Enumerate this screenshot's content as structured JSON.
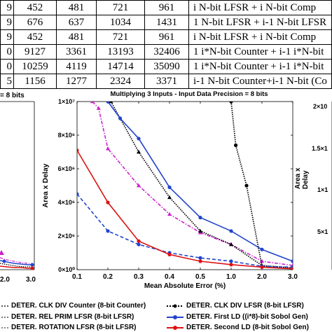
{
  "table": {
    "rows": [
      [
        "9",
        "452",
        "481",
        "721",
        "961",
        "i N-bit LFSR + i N-bit Comp"
      ],
      [
        "9",
        "676",
        "637",
        "1034",
        "1431",
        "1 N-bit LFSR + i-1 N-bit LFSR"
      ],
      [
        "9",
        "452",
        "481",
        "721",
        "961",
        "i N-bit LFSR + i N-bit Comp"
      ],
      [
        "0",
        "9127",
        "3361",
        "13193",
        "32406",
        "1 i*N-bit Counter + i-1 i*N-bit"
      ],
      [
        "0",
        "10259",
        "4119",
        "14714",
        "35090",
        "1 i*N-bit Counter + i-1 i*N-bit"
      ],
      [
        "5",
        "1156",
        "1277",
        "2324",
        "3371",
        "i-1 N-bit Counter+i-1 N-bit (Co"
      ]
    ]
  },
  "side_left": {
    "title_fragment": "= 8 bits",
    "xtick_labels": [
      "2.0",
      "3.0"
    ]
  },
  "side_right": {
    "yticks": [
      "2×10",
      "1.5×1",
      "1×1",
      "5×1"
    ],
    "ylabel_fragment": "Area x Delay"
  },
  "legend": {
    "items": [
      {
        "label": "DETER. CLK DIV Counter (8-bit Counter)",
        "color": "#5a5a5a",
        "style": "dotted"
      },
      {
        "label": "DETER. CLK DIV LFSR (8-bit LFSR)",
        "color": "#000000",
        "style": "dotted-marker"
      },
      {
        "label": "DETER. REL PRIM LFSR (8-bit LFSR)",
        "color": "#7a7a7a",
        "style": "dotted"
      },
      {
        "label": "DETER. First LD ((i*8)-bit Sobol Gen)",
        "color": "#2244cc",
        "style": "solid-marker"
      },
      {
        "label": "DETER. ROTATION LFSR (8-bit LFSR)",
        "color": "#888888",
        "style": "dotted"
      },
      {
        "label": "DETER. Second LD (8-bit Sobol Gen)",
        "color": "#dd1111",
        "style": "solid-marker"
      }
    ]
  },
  "chart_data": {
    "type": "line",
    "title": "Multiplying 3 Inputs - Input Data Precision = 8 bits",
    "xlabel": "Mean Absolute Error (%)",
    "ylabel": "Area x Delay",
    "x_tick_labels": [
      "0.1",
      "0.2",
      "0.3",
      "0.4",
      "0.5",
      "1.0",
      "2.0",
      "3.0"
    ],
    "y_tick_labels": [
      "0×10⁰",
      "2×10⁶",
      "4×10⁶",
      "6×10⁶",
      "8×10⁶",
      "1×10⁷"
    ],
    "ylim": [
      0,
      10000000
    ],
    "grid": false,
    "series": [
      {
        "color": "#cc22cc",
        "dash": "dashdot",
        "marker": "triangle",
        "points": [
          [
            0.5,
            10000000
          ],
          [
            0.7,
            9600000
          ],
          [
            1.0,
            7200000
          ],
          [
            2.0,
            5000000
          ],
          [
            3.0,
            3300000
          ],
          [
            4.0,
            2200000
          ],
          [
            5.0,
            1500000
          ],
          [
            6.0,
            500000
          ],
          [
            7.0,
            250000
          ]
        ]
      },
      {
        "color": "#000000",
        "dash": "dotted",
        "marker": "dot",
        "points": [
          [
            5.0,
            10000000
          ],
          [
            5.15,
            7400000
          ],
          [
            5.5,
            5000000
          ],
          [
            6.0,
            200000
          ],
          [
            7.0,
            100000
          ]
        ]
      },
      {
        "color": "#000000",
        "dash": "dotted",
        "marker": "triangle",
        "points": [
          [
            1.1,
            10000000
          ],
          [
            2.0,
            7000000
          ],
          [
            3.0,
            4300000
          ],
          [
            4.0,
            2300000
          ],
          [
            5.0,
            1500000
          ],
          [
            6.0,
            250000
          ],
          [
            7.0,
            100000
          ]
        ]
      },
      {
        "color": "#2244cc",
        "dash": "solid",
        "marker": "dot",
        "points": [
          [
            1.0,
            10000000
          ],
          [
            1.4,
            9000000
          ],
          [
            2.0,
            7800000
          ],
          [
            3.0,
            4900000
          ],
          [
            4.0,
            3100000
          ],
          [
            5.0,
            2300000
          ],
          [
            6.0,
            1200000
          ],
          [
            7.0,
            500000
          ]
        ]
      },
      {
        "color": "#2244cc",
        "dash": "dashed",
        "marker": "dot",
        "points": [
          [
            0.0,
            4500000
          ],
          [
            1.0,
            2300000
          ],
          [
            2.0,
            1500000
          ],
          [
            3.0,
            1000000
          ],
          [
            4.0,
            700000
          ],
          [
            5.0,
            500000
          ],
          [
            6.0,
            200000
          ],
          [
            7.0,
            150000
          ]
        ]
      },
      {
        "color": "#dd1111",
        "dash": "solid",
        "marker": "dot",
        "points": [
          [
            0.0,
            7100000
          ],
          [
            1.0,
            4000000
          ],
          [
            2.0,
            1700000
          ],
          [
            3.0,
            900000
          ],
          [
            4.0,
            500000
          ],
          [
            5.0,
            300000
          ],
          [
            6.0,
            150000
          ],
          [
            7.0,
            50000
          ]
        ]
      }
    ]
  }
}
